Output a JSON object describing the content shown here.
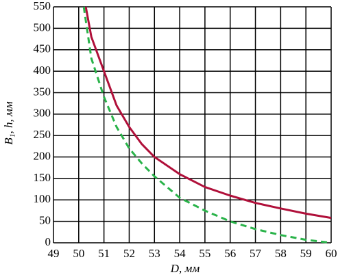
{
  "chart_data": {
    "type": "line",
    "xlabel": "D, мм",
    "ylabel": "B₁, h, мм",
    "xlim": [
      49,
      60
    ],
    "xticks": [
      49,
      50,
      51,
      52,
      53,
      54,
      55,
      56,
      57,
      58,
      59,
      60
    ],
    "ylim": [
      0,
      550
    ],
    "yticks": [
      0,
      50,
      100,
      150,
      200,
      250,
      300,
      350,
      400,
      450,
      500,
      550
    ],
    "grid": true,
    "series": [
      {
        "color": "#b0103a",
        "dash": false,
        "x": [
          50.28,
          50.5,
          51,
          51.5,
          52,
          52.5,
          53,
          54,
          55,
          56,
          57,
          58,
          59,
          60
        ],
        "values": [
          550,
          480,
          400,
          320,
          270,
          230,
          200,
          160,
          130,
          110,
          93,
          80,
          68,
          58
        ]
      },
      {
        "color": "#2ab34a",
        "dash": true,
        "x": [
          50.2,
          50.5,
          51,
          51.5,
          52,
          52.5,
          53,
          54,
          55,
          56,
          57,
          58,
          59,
          60
        ],
        "values": [
          550,
          430,
          340,
          270,
          220,
          185,
          155,
          105,
          75,
          50,
          32,
          18,
          7,
          0
        ]
      }
    ]
  }
}
